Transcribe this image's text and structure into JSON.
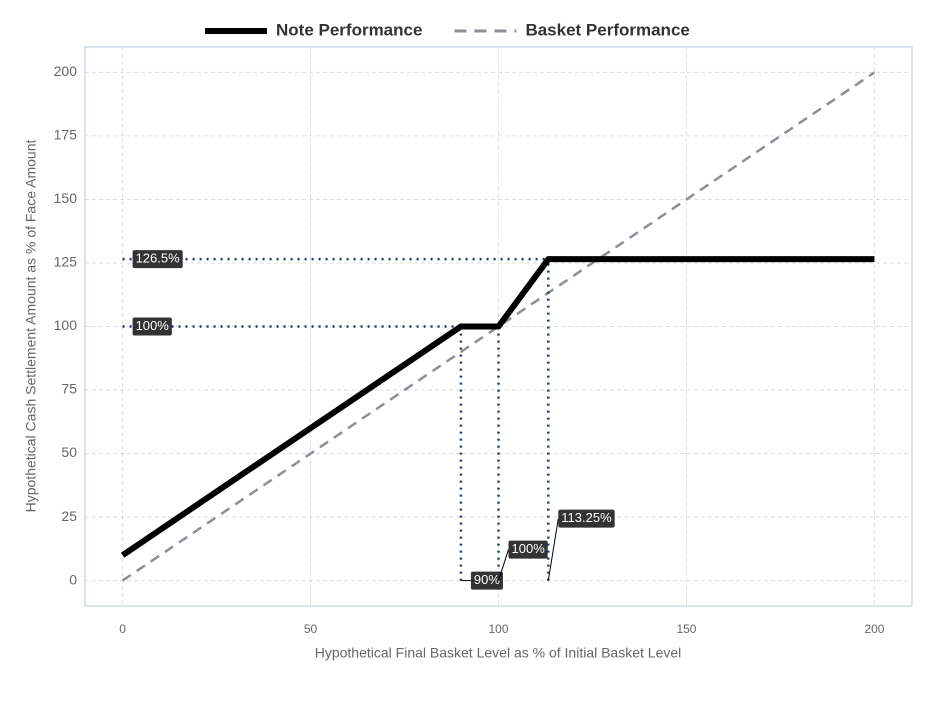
{
  "chart_data": {
    "type": "line",
    "x_label": "Hypothetical Final Basket Level as % of Initial Basket Level",
    "y_label": "Hypothetical Cash Settlement Amount as % of Face Amount",
    "xlim": [
      -10,
      210
    ],
    "ylim": [
      -10,
      210
    ],
    "xticks": [
      0,
      50,
      100,
      150,
      200
    ],
    "yticks": [
      0,
      25,
      50,
      75,
      100,
      125,
      150,
      175,
      200
    ],
    "grid": true,
    "legend": "top",
    "series": [
      {
        "name": "Note Performance",
        "color": "#000000",
        "style": "solid",
        "x": [
          0,
          90,
          100,
          113.25,
          200
        ],
        "values": [
          10,
          100,
          100,
          126.5,
          126.5
        ]
      },
      {
        "name": "Basket Performance",
        "color": "#8e8e99",
        "style": "dashed",
        "x": [
          0,
          200
        ],
        "values": [
          0,
          200
        ]
      }
    ],
    "ref_color": "#1f3a68",
    "h_refs": [
      {
        "value": 126.5,
        "label": "126.5%"
      },
      {
        "value": 100,
        "label": "100%"
      }
    ],
    "v_refs": [
      {
        "value": 90,
        "label": "90%"
      },
      {
        "value": 100,
        "label": "100%"
      },
      {
        "value": 113.25,
        "label": "113.25%"
      }
    ]
  }
}
